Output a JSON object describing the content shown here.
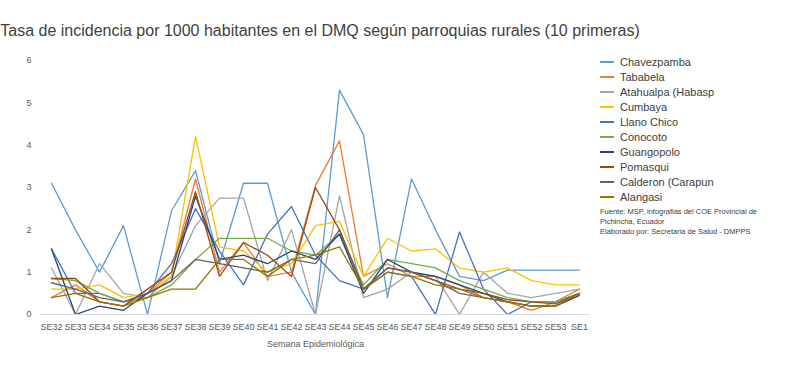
{
  "chart_data": {
    "type": "line",
    "title": "Tasa de incidencia por 1000 habitantes en el DMQ según parroquias rurales (10 primeras)",
    "x_label": "Semana Epidemiológica",
    "categories": [
      "SE32",
      "SE33",
      "SE34",
      "SE35",
      "SE36",
      "SE37",
      "SE38",
      "SE39",
      "SE40",
      "SE41",
      "SE42",
      "SE43",
      "SE44",
      "SE45",
      "SE46",
      "SE47",
      "SE48",
      "SE49",
      "SE50",
      "SE51",
      "SE52",
      "SE53",
      "SE1"
    ],
    "series": [
      {
        "name": "Chavezpamba",
        "color": "#5b9bd5",
        "values": [
          3.1,
          2.0,
          1.0,
          2.1,
          0,
          2.45,
          3.4,
          1.2,
          3.1,
          3.1,
          1.0,
          0,
          5.3,
          4.25,
          0.4,
          3.2,
          2.0,
          0.9,
          0.8,
          1.05,
          1.05,
          1.05,
          1.05
        ]
      },
      {
        "name": "Tababela",
        "color": "#ed7d31",
        "values": [
          0.4,
          0.7,
          0.3,
          0.2,
          0.5,
          1.0,
          3.2,
          1.0,
          1.7,
          0.9,
          1.0,
          3.05,
          4.1,
          0.9,
          1.2,
          0.9,
          0.9,
          0.7,
          0.4,
          0.3,
          0.1,
          0.3,
          0.6
        ]
      },
      {
        "name": "Atahualpa (Habasp",
        "color": "#a5a5a5",
        "values": [
          1.1,
          0,
          1.2,
          0.5,
          0.4,
          0.9,
          2.1,
          2.75,
          2.75,
          0.8,
          2.0,
          0,
          2.8,
          0.4,
          0.6,
          1.0,
          0.9,
          0,
          1.0,
          0.5,
          0.4,
          0.5,
          0.6
        ]
      },
      {
        "name": "Cumbaya",
        "color": "#ffc000",
        "values": [
          0.6,
          0.6,
          0.7,
          0.4,
          0.5,
          0.9,
          4.2,
          1.6,
          1.5,
          1.0,
          1.2,
          2.1,
          2.2,
          0.9,
          1.8,
          1.5,
          1.55,
          1.1,
          1.0,
          1.1,
          0.8,
          0.7,
          0.7
        ]
      },
      {
        "name": "Llano Chico",
        "color": "#4472c4",
        "values": [
          1.55,
          0.5,
          0.5,
          0.3,
          0.5,
          1.2,
          2.5,
          1.5,
          0.7,
          1.9,
          2.55,
          1.4,
          0.8,
          0.6,
          1.0,
          0.9,
          0,
          1.95,
          0.6,
          0,
          0.3,
          0.3,
          0.5
        ]
      },
      {
        "name": "Conocoto",
        "color": "#70ad47",
        "values": [
          0.85,
          0.8,
          0.5,
          0.3,
          0.4,
          0.7,
          1.3,
          1.8,
          1.8,
          1.8,
          1.5,
          1.4,
          1.9,
          0.7,
          1.3,
          1.2,
          1.1,
          0.8,
          0.6,
          0.4,
          0.3,
          0.3,
          0.5
        ]
      },
      {
        "name": "Guangopolo",
        "color": "#264478",
        "values": [
          1.55,
          0,
          0.2,
          0.1,
          0.5,
          0.8,
          2.8,
          1.3,
          1.4,
          1.2,
          1.5,
          1.3,
          1.9,
          0.5,
          1.3,
          1.0,
          0.9,
          0.7,
          0.5,
          0.3,
          0.2,
          0.2,
          0.45
        ]
      },
      {
        "name": "Pomasqui",
        "color": "#9e480e",
        "values": [
          0.85,
          0.85,
          0.3,
          0.2,
          0.6,
          1.0,
          2.9,
          0.9,
          1.7,
          1.4,
          0.9,
          3.0,
          2.0,
          0.6,
          1.1,
          1.0,
          0.8,
          0.6,
          0.5,
          0.35,
          0.3,
          0.25,
          0.5
        ]
      },
      {
        "name": "Calderon (Carapun",
        "color": "#636363",
        "values": [
          0.75,
          0.6,
          0.4,
          0.3,
          0.5,
          0.8,
          1.3,
          1.2,
          1.1,
          1.0,
          1.3,
          1.2,
          2.0,
          0.6,
          1.1,
          1.0,
          0.8,
          0.5,
          0.4,
          0.3,
          0.2,
          0.2,
          0.5
        ]
      },
      {
        "name": "Alangasi",
        "color": "#997300",
        "values": [
          0.4,
          0.5,
          0.3,
          0.2,
          0.4,
          0.6,
          0.6,
          1.3,
          1.3,
          0.9,
          1.3,
          1.4,
          1.6,
          0.6,
          1.0,
          0.9,
          0.7,
          0.6,
          0.4,
          0.3,
          0.2,
          0.2,
          0.5
        ]
      }
    ],
    "ylim": [
      0,
      6
    ],
    "yticks": [
      0,
      1,
      2,
      3,
      4,
      5,
      6
    ],
    "grid": false,
    "legend": "right",
    "notes": [
      "Fuente: MSP, infografias del  COE Provincial de Pichincha, Ecuador",
      "Elaborado por: Secretaria de Salud - DMPPS"
    ]
  }
}
